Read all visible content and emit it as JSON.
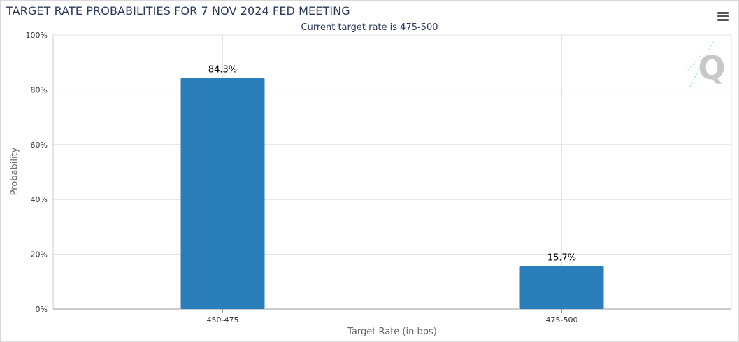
{
  "title": "TARGET RATE PROBABILITIES FOR 7 NOV 2024 FED MEETING",
  "menu_icon": "hamburger-menu-icon",
  "watermark_icon": "q-logo-watermark-icon",
  "colors": {
    "bar": "#2a7fba",
    "grid": "#e0e0e0",
    "title": "#2b3a5a"
  },
  "chart_data": {
    "type": "bar",
    "title": "",
    "subtitle": "Current target rate is 475-500",
    "xlabel": "Target Rate (in bps)",
    "ylabel": "Probability",
    "categories": [
      "450-475",
      "475-500"
    ],
    "values": [
      84.3,
      15.7
    ],
    "data_labels": [
      "84.3%",
      "15.7%"
    ],
    "ylim": [
      0,
      100
    ],
    "yticks": [
      0,
      20,
      40,
      60,
      80,
      100
    ],
    "ytick_labels": [
      "0%",
      "20%",
      "40%",
      "60%",
      "80%",
      "100%"
    ],
    "grid": true,
    "legend": "none"
  }
}
